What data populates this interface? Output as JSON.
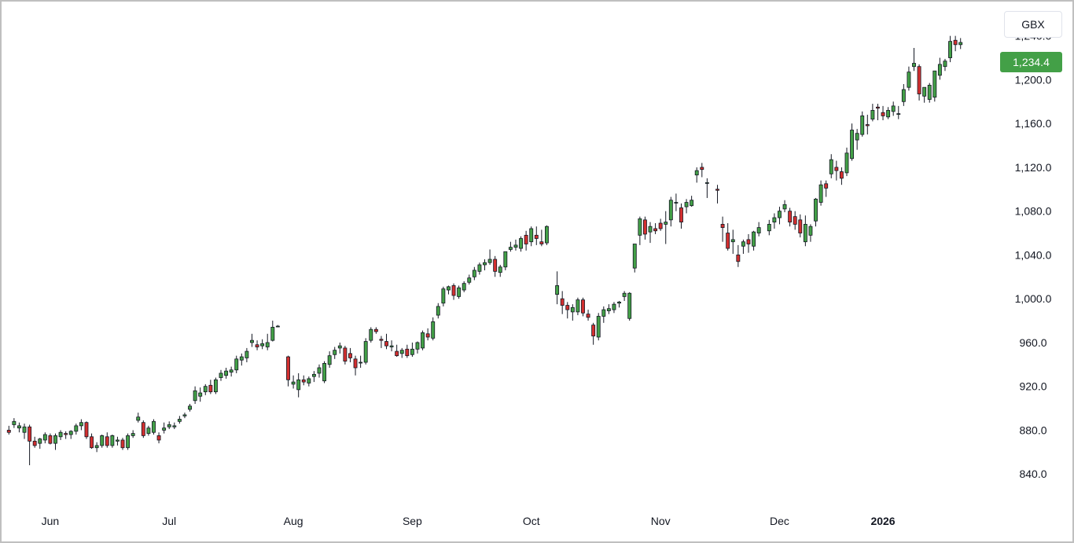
{
  "currency": "GBX",
  "last_price_label": "1,234.4",
  "colors": {
    "up": "#43a047",
    "down": "#d32f2f",
    "wick": "#131722",
    "last_price": "#43a047"
  },
  "chart_data": {
    "type": "candlestick",
    "ylim": [
      810,
      1262
    ],
    "y_ticks": [
      {
        "value": 840,
        "label": "840.0"
      },
      {
        "value": 880,
        "label": "880.0"
      },
      {
        "value": 920,
        "label": "920.0"
      },
      {
        "value": 960,
        "label": "960.0"
      },
      {
        "value": 1000,
        "label": "1,000.0"
      },
      {
        "value": 1040,
        "label": "1,040.0"
      },
      {
        "value": 1080,
        "label": "1,080.0"
      },
      {
        "value": 1120,
        "label": "1,120.0"
      },
      {
        "value": 1160,
        "label": "1,160.0"
      },
      {
        "value": 1200,
        "label": "1,200.0"
      },
      {
        "value": 1240,
        "label": "1,240.0"
      }
    ],
    "x_ticks": [
      {
        "label": "Jun",
        "index": 8,
        "bold": false
      },
      {
        "label": "Jul",
        "index": 31,
        "bold": false
      },
      {
        "label": "Aug",
        "index": 54,
        "bold": false
      },
      {
        "label": "Sep",
        "index": 77,
        "bold": false
      },
      {
        "label": "Oct",
        "index": 100,
        "bold": false
      },
      {
        "label": "Nov",
        "index": 124,
        "bold": false
      },
      {
        "label": "Dec",
        "index": 145,
        "bold": false
      },
      {
        "label": "2026",
        "index": 165,
        "bold": true
      }
    ],
    "gaps": [
      53,
      104,
      134,
      143
    ],
    "candles": [
      [
        880,
        884,
        876,
        878
      ],
      [
        885,
        891,
        882,
        888
      ],
      [
        882,
        887,
        878,
        884
      ],
      [
        878,
        886,
        872,
        883
      ],
      [
        883,
        885,
        848,
        870
      ],
      [
        870,
        874,
        864,
        866
      ],
      [
        868,
        873,
        863,
        872
      ],
      [
        871,
        878,
        868,
        876
      ],
      [
        875,
        877,
        867,
        868
      ],
      [
        868,
        877,
        862,
        875
      ],
      [
        874,
        880,
        871,
        878
      ],
      [
        877,
        879,
        872,
        876
      ],
      [
        876,
        880,
        872,
        879
      ],
      [
        879,
        886,
        876,
        884
      ],
      [
        884,
        890,
        880,
        887
      ],
      [
        887,
        888,
        872,
        874
      ],
      [
        874,
        877,
        863,
        864
      ],
      [
        864,
        869,
        860,
        866
      ],
      [
        866,
        876,
        864,
        875
      ],
      [
        874,
        878,
        864,
        866
      ],
      [
        866,
        876,
        864,
        875
      ],
      [
        870,
        874,
        866,
        871
      ],
      [
        871,
        873,
        862,
        864
      ],
      [
        864,
        877,
        862,
        875
      ],
      [
        875,
        880,
        873,
        877
      ],
      [
        889,
        896,
        887,
        892
      ],
      [
        887,
        889,
        873,
        875
      ],
      [
        877,
        884,
        875,
        882
      ],
      [
        878,
        890,
        876,
        888
      ],
      [
        875,
        878,
        868,
        871
      ],
      [
        880,
        887,
        877,
        882
      ],
      [
        883,
        888,
        881,
        885
      ],
      [
        883,
        887,
        881,
        884
      ],
      [
        888,
        893,
        886,
        890
      ],
      [
        893,
        896,
        891,
        894
      ],
      [
        899,
        904,
        897,
        902
      ],
      [
        907,
        920,
        904,
        916
      ],
      [
        911,
        919,
        906,
        914
      ],
      [
        915,
        922,
        912,
        920
      ],
      [
        921,
        926,
        913,
        915
      ],
      [
        915,
        928,
        913,
        926
      ],
      [
        928,
        935,
        925,
        932
      ],
      [
        930,
        937,
        927,
        934
      ],
      [
        933,
        938,
        929,
        935
      ],
      [
        935,
        948,
        932,
        945
      ],
      [
        944,
        950,
        939,
        947
      ],
      [
        946,
        955,
        942,
        952
      ],
      [
        960,
        968,
        956,
        962
      ],
      [
        958,
        962,
        953,
        956
      ],
      [
        957,
        963,
        954,
        959
      ],
      [
        956,
        968,
        953,
        960
      ],
      [
        962,
        980,
        961,
        974
      ],
      [
        975,
        976,
        974,
        975
      ],
      [
        947,
        948,
        920,
        926
      ],
      [
        922,
        930,
        918,
        924
      ],
      [
        917,
        932,
        910,
        926
      ],
      [
        926,
        930,
        921,
        924
      ],
      [
        923,
        929,
        920,
        927
      ],
      [
        929,
        934,
        924,
        931
      ],
      [
        932,
        940,
        928,
        937
      ],
      [
        925,
        943,
        923,
        941
      ],
      [
        940,
        952,
        937,
        948
      ],
      [
        949,
        956,
        945,
        953
      ],
      [
        955,
        960,
        950,
        957
      ],
      [
        955,
        957,
        940,
        943
      ],
      [
        950,
        955,
        942,
        946
      ],
      [
        945,
        948,
        930,
        937
      ],
      [
        942,
        948,
        937,
        942
      ],
      [
        942,
        964,
        940,
        961
      ],
      [
        962,
        974,
        960,
        972
      ],
      [
        972,
        974,
        968,
        970
      ],
      [
        963,
        966,
        955,
        962
      ],
      [
        961,
        968,
        954,
        957
      ],
      [
        956,
        962,
        952,
        957
      ],
      [
        952,
        958,
        947,
        948
      ],
      [
        950,
        955,
        946,
        953
      ],
      [
        954,
        958,
        946,
        948
      ],
      [
        949,
        960,
        947,
        954
      ],
      [
        954,
        961,
        950,
        960
      ],
      [
        955,
        971,
        953,
        969
      ],
      [
        968,
        973,
        962,
        965
      ],
      [
        964,
        983,
        962,
        979
      ],
      [
        985,
        996,
        982,
        993
      ],
      [
        996,
        1011,
        993,
        1009
      ],
      [
        1008,
        1012,
        1004,
        1011
      ],
      [
        1012,
        1014,
        999,
        1003
      ],
      [
        1002,
        1012,
        1000,
        1010
      ],
      [
        1008,
        1016,
        1006,
        1014
      ],
      [
        1015,
        1022,
        1013,
        1019
      ],
      [
        1020,
        1029,
        1017,
        1026
      ],
      [
        1025,
        1033,
        1022,
        1031
      ],
      [
        1031,
        1036,
        1026,
        1033
      ],
      [
        1033,
        1045,
        1031,
        1036
      ],
      [
        1036,
        1039,
        1020,
        1025
      ],
      [
        1024,
        1031,
        1020,
        1029
      ],
      [
        1029,
        1043,
        1026,
        1043
      ],
      [
        1045,
        1052,
        1043,
        1047
      ],
      [
        1047,
        1054,
        1044,
        1049
      ],
      [
        1046,
        1057,
        1043,
        1055
      ],
      [
        1058,
        1062,
        1044,
        1050
      ],
      [
        1052,
        1066,
        1048,
        1064
      ],
      [
        1058,
        1066,
        1049,
        1055
      ],
      [
        1052,
        1063,
        1048,
        1050
      ],
      [
        1051,
        1067,
        1049,
        1066
      ],
      [
        1004,
        1025,
        995,
        1012
      ],
      [
        1000,
        1007,
        986,
        994
      ],
      [
        994,
        997,
        982,
        990
      ],
      [
        988,
        995,
        980,
        992
      ],
      [
        988,
        1001,
        985,
        999
      ],
      [
        999,
        1001,
        984,
        987
      ],
      [
        986,
        990,
        980,
        983
      ],
      [
        976,
        978,
        958,
        966
      ],
      [
        965,
        987,
        962,
        984
      ],
      [
        984,
        993,
        978,
        990
      ],
      [
        989,
        995,
        986,
        991
      ],
      [
        990,
        997,
        987,
        995
      ],
      [
        996,
        998,
        992,
        997
      ],
      [
        1002,
        1007,
        998,
        1005
      ],
      [
        982,
        1006,
        980,
        1005
      ],
      [
        1028,
        1050,
        1024,
        1050
      ],
      [
        1058,
        1075,
        1049,
        1073
      ],
      [
        1072,
        1075,
        1054,
        1059
      ],
      [
        1061,
        1070,
        1051,
        1066
      ],
      [
        1064,
        1069,
        1059,
        1062
      ],
      [
        1069,
        1073,
        1062,
        1064
      ],
      [
        1068,
        1080,
        1050,
        1070
      ],
      [
        1072,
        1093,
        1066,
        1090
      ],
      [
        1088,
        1096,
        1080,
        1088
      ],
      [
        1083,
        1087,
        1064,
        1070
      ],
      [
        1084,
        1091,
        1078,
        1088
      ],
      [
        1085,
        1094,
        1084,
        1090
      ],
      [
        1113,
        1120,
        1106,
        1117
      ],
      [
        1120,
        1124,
        1111,
        1118
      ],
      [
        1106,
        1110,
        1092,
        1106
      ],
      [
        1100,
        1104,
        1087,
        1099
      ],
      [
        1068,
        1075,
        1052,
        1065
      ],
      [
        1060,
        1069,
        1044,
        1046
      ],
      [
        1052,
        1063,
        1041,
        1054
      ],
      [
        1040,
        1049,
        1029,
        1034
      ],
      [
        1048,
        1054,
        1041,
        1052
      ],
      [
        1054,
        1059,
        1042,
        1050
      ],
      [
        1048,
        1062,
        1044,
        1061
      ],
      [
        1060,
        1070,
        1057,
        1065
      ],
      [
        1062,
        1072,
        1058,
        1068
      ],
      [
        1070,
        1078,
        1064,
        1074
      ],
      [
        1074,
        1084,
        1068,
        1080
      ],
      [
        1082,
        1090,
        1079,
        1086
      ],
      [
        1080,
        1083,
        1066,
        1070
      ],
      [
        1075,
        1080,
        1063,
        1068
      ],
      [
        1072,
        1077,
        1056,
        1060
      ],
      [
        1052,
        1076,
        1048,
        1068
      ],
      [
        1058,
        1068,
        1052,
        1066
      ],
      [
        1071,
        1092,
        1066,
        1091
      ],
      [
        1088,
        1108,
        1085,
        1104
      ],
      [
        1105,
        1108,
        1093,
        1101
      ],
      [
        1114,
        1132,
        1110,
        1127
      ],
      [
        1120,
        1126,
        1108,
        1117
      ],
      [
        1116,
        1120,
        1104,
        1110
      ],
      [
        1115,
        1138,
        1112,
        1133
      ],
      [
        1128,
        1160,
        1126,
        1154
      ],
      [
        1145,
        1155,
        1136,
        1151
      ],
      [
        1150,
        1171,
        1148,
        1167
      ],
      [
        1159,
        1168,
        1150,
        1158
      ],
      [
        1164,
        1178,
        1162,
        1172
      ],
      [
        1175,
        1178,
        1163,
        1174
      ],
      [
        1170,
        1176,
        1163,
        1167
      ],
      [
        1166,
        1175,
        1164,
        1172
      ],
      [
        1171,
        1180,
        1167,
        1176
      ],
      [
        1169,
        1176,
        1164,
        1169
      ],
      [
        1180,
        1196,
        1176,
        1191
      ],
      [
        1193,
        1212,
        1190,
        1207
      ],
      [
        1212,
        1229,
        1208,
        1215
      ],
      [
        1212,
        1214,
        1181,
        1187
      ],
      [
        1185,
        1191,
        1179,
        1193
      ],
      [
        1182,
        1197,
        1179,
        1195
      ],
      [
        1184,
        1208,
        1180,
        1208
      ],
      [
        1204,
        1220,
        1200,
        1214
      ],
      [
        1212,
        1219,
        1208,
        1217
      ],
      [
        1220,
        1240,
        1216,
        1235
      ],
      [
        1236,
        1240,
        1226,
        1232
      ],
      [
        1232,
        1238,
        1228,
        1234
      ]
    ]
  }
}
